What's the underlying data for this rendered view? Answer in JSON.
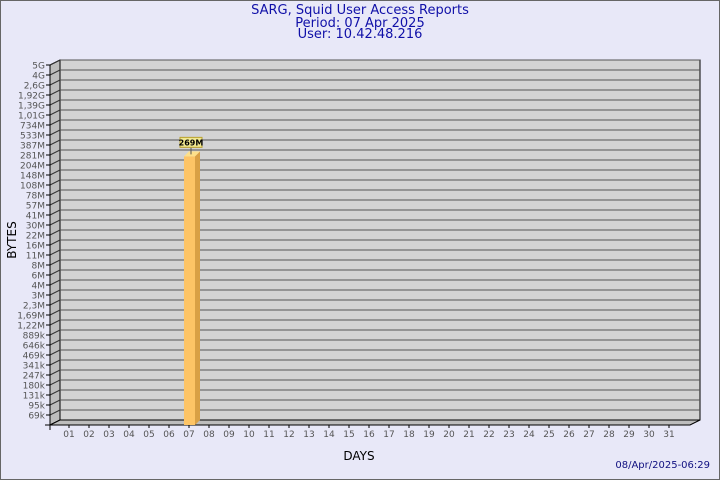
{
  "header": {
    "title": "SARG, Squid User Access Reports",
    "period": "Period: 07 Apr 2025",
    "user": "User: 10.42.48.216"
  },
  "footer": "08/Apr/2025-06:29",
  "chart_data": {
    "type": "bar",
    "style": "3d",
    "xlabel": "DAYS",
    "ylabel": "BYTES",
    "y_scale": "nonlinear (label-indexed)",
    "y_tick_labels": [
      "69k",
      "95k",
      "131k",
      "180k",
      "247k",
      "341k",
      "469k",
      "646k",
      "889k",
      "1,22M",
      "1,69M",
      "2,3M",
      "3M",
      "4M",
      "6M",
      "8M",
      "11M",
      "16M",
      "22M",
      "30M",
      "41M",
      "57M",
      "78M",
      "108M",
      "148M",
      "204M",
      "281M",
      "387M",
      "533M",
      "734M",
      "1,01G",
      "1,39G",
      "1,92G",
      "2,6G",
      "4G",
      "5G"
    ],
    "categories": [
      "01",
      "02",
      "03",
      "04",
      "05",
      "06",
      "07",
      "08",
      "09",
      "10",
      "11",
      "12",
      "13",
      "14",
      "15",
      "16",
      "17",
      "18",
      "19",
      "20",
      "21",
      "22",
      "23",
      "24",
      "25",
      "26",
      "27",
      "28",
      "29",
      "30",
      "31"
    ],
    "bars": [
      {
        "category": "07",
        "value": "269M",
        "label": "269M"
      }
    ],
    "grid": true,
    "colors": {
      "bar_front": "#fdc466",
      "bar_side": "#d9a045",
      "bar_top": "#fde08a",
      "wall": "#d3d3d3",
      "grid": "#555555",
      "label_box": "#f0e890"
    }
  }
}
